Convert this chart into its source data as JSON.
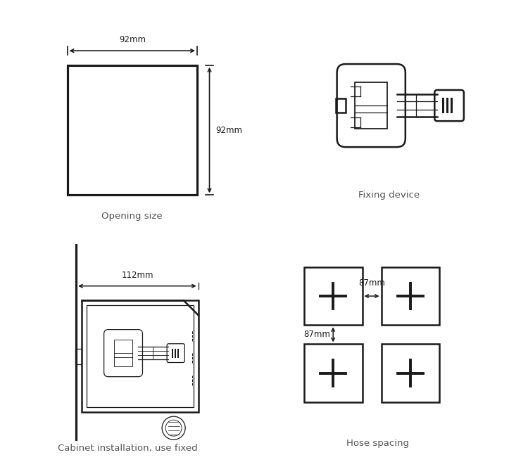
{
  "bg_color": "#ffffff",
  "line_color": "#1a1a1a",
  "text_color": "#555555",
  "label_fontsize": 9,
  "dim_fontsize": 8.5,
  "panel_labels": {
    "opening": "Opening size",
    "fixing": "Fixing device",
    "cabinet": "Cabinet installation, use fixed",
    "hose": "Hose spacing"
  },
  "dims": {
    "opening_width": "92mm",
    "opening_height": "92mm",
    "cabinet_width": "112mm",
    "hose_h": "87mm",
    "hose_v": "87mm"
  }
}
